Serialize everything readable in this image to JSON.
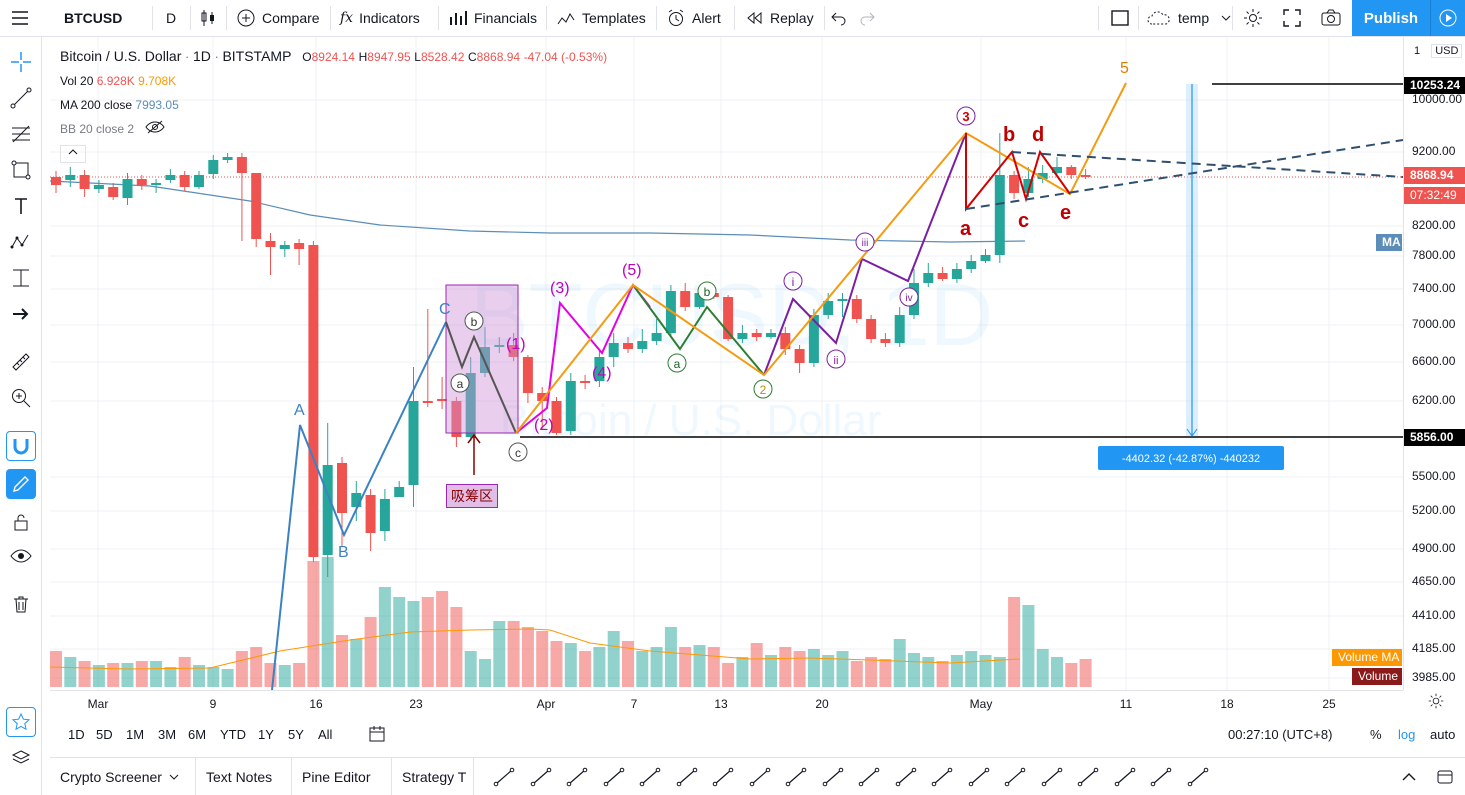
{
  "toolbar": {
    "symbol": "BTCUSD",
    "interval": "D",
    "compare": "Compare",
    "indicators": "Indicators",
    "financials": "Financials",
    "templates": "Templates",
    "alert": "Alert",
    "replay": "Replay",
    "layout_name": "temp",
    "publish": "Publish"
  },
  "legend": {
    "title": "Bitcoin / U.S. Dollar",
    "interval": "1D",
    "exchange": "BITSTAMP",
    "o_label": "O",
    "open": "8924.14",
    "h_label": "H",
    "high": "8947.95",
    "l_label": "L",
    "low": "8528.42",
    "c_label": "C",
    "close": "8868.94",
    "change": "-47.04 (-0.53%)",
    "vol_label": "Vol 20",
    "vol_value": "6.928K",
    "vol_ma": "9.708K",
    "ma_label": "MA 200 close",
    "ma_value": "7993.05",
    "bb_label": "BB 20 close 2"
  },
  "watermark": {
    "symbol": "BTCUSD, 1D",
    "name": "Bitcoin / U.S. Dollar"
  },
  "price_axis": {
    "currency": "USD",
    "scale_value": "1",
    "ticks": [
      "10000.00",
      "9200.00",
      "8200.00",
      "7800.00",
      "7400.00",
      "7000.00",
      "6600.00",
      "6200.00",
      "5500.00",
      "5200.00",
      "4900.00",
      "4650.00",
      "4410.00",
      "4185.00",
      "3985.00"
    ],
    "tag_top": "10253.24",
    "tag_price": "8868.94",
    "tag_countdown": "07:32:49",
    "tag_ma": "MA",
    "tag_low": "5856.00",
    "tag_volume_ma": "Volume MA",
    "tag_volume": "Volume"
  },
  "time_axis": {
    "ticks": [
      "Mar",
      "9",
      "16",
      "23",
      "Apr",
      "7",
      "13",
      "20",
      "May",
      "11",
      "18",
      "25"
    ]
  },
  "range_bar": {
    "ranges": [
      "1D",
      "5D",
      "1M",
      "3M",
      "6M",
      "YTD",
      "1Y",
      "5Y",
      "All"
    ],
    "clock": "00:27:10 (UTC+8)",
    "percent": "%",
    "log": "log",
    "auto": "auto"
  },
  "bottom_tabs": [
    "Crypto Screener",
    "Text Notes",
    "Pine Editor",
    "Strategy T"
  ],
  "annotations": {
    "measure": "-4402.32 (-42.87%) -440232",
    "accumulation_zone": "吸筹区",
    "wave_A": "A",
    "wave_B": "B",
    "wave_C": "C",
    "sub_a": "a",
    "sub_b": "b",
    "sub_c": "c",
    "w1": "(1)",
    "w2": "(2)",
    "w3": "(3)",
    "w4": "(4)",
    "w5": "(5)",
    "g_a": "a",
    "g_b": "b",
    "g_2": "2",
    "r_i": "i",
    "r_ii": "ii",
    "r_iii": "iii",
    "r_iv": "iv",
    "r_3": "3",
    "t_a": "a",
    "t_b": "b",
    "t_c": "c",
    "t_d": "d",
    "t_e": "e",
    "orange_5": "5"
  },
  "colors": {
    "accent": "#2196f3",
    "up": "#26a69a",
    "down": "#ef5350",
    "ma": "#5b8db8",
    "elliott_orange": "#f39c12",
    "elliott_magenta": "#e400e4",
    "elliott_red": "#d40000",
    "elliott_blue": "#3b82c4",
    "elliott_green": "#2e7d32"
  }
}
